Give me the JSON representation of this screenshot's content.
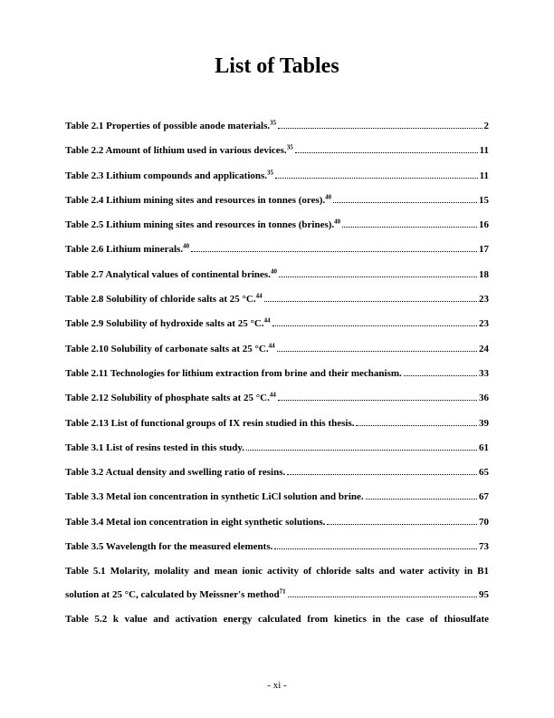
{
  "title": "List of Tables",
  "entries": [
    {
      "label": "Table 2.1 Properties of possible anode materials.",
      "sup": "35",
      "page": "2"
    },
    {
      "label": "Table 2.2 Amount of lithium used in various devices.",
      "sup": "35",
      "page": "11"
    },
    {
      "label": "Table 2.3 Lithium compounds and applications.",
      "sup": "35",
      "page": "11"
    },
    {
      "label": "Table 2.4 Lithium mining sites and resources in tonnes (ores).",
      "sup": "40",
      "page": "15"
    },
    {
      "label": "Table 2.5 Lithium mining sites and resources in tonnes (brines).",
      "sup": "40",
      "page": "16"
    },
    {
      "label": "Table 2.6 Lithium minerals.",
      "sup": "40",
      "page": "17"
    },
    {
      "label": "Table 2.7 Analytical values of continental brines.",
      "sup": "40",
      "page": "18"
    },
    {
      "label": "Table 2.8 Solubility of chloride salts at 25 °C.",
      "sup": "44",
      "page": "23"
    },
    {
      "label": "Table 2.9 Solubility of hydroxide salts at 25 °C.",
      "sup": "44",
      "page": "23"
    },
    {
      "label": "Table 2.10 Solubility of carbonate salts at 25 °C.",
      "sup": "44",
      "page": "24"
    },
    {
      "label": "Table 2.11 Technologies for lithium extraction from brine and their mechanism.",
      "sup": "",
      "page": "33"
    },
    {
      "label": "Table 2.12 Solubility of phosphate salts at 25 °C.",
      "sup": "44",
      "page": "36"
    },
    {
      "label": "Table 2.13 List of functional groups of IX resin studied in this thesis.",
      "sup": "",
      "page": "39"
    },
    {
      "label": "Table 3.1 List of resins tested in this study.",
      "sup": "",
      "page": "61"
    },
    {
      "label": "Table 3.2 Actual density and swelling ratio of resins.",
      "sup": "",
      "page": "65"
    },
    {
      "label": "Table 3.3 Metal ion concentration in synthetic LiCl solution and brine.",
      "sup": "",
      "page": "67"
    },
    {
      "label": "Table 3.4 Metal ion concentration in eight synthetic solutions.",
      "sup": "",
      "page": "70"
    },
    {
      "label": "Table 3.5 Wavelength for the measured elements.",
      "sup": "",
      "page": "73"
    }
  ],
  "multiline1": {
    "line1": "Table 5.1 Molarity, molality and mean ionic activity of chloride salts and water activity in B1",
    "line2_label": "solution at 25 °C, calculated by Meissner's method",
    "line2_sup": "71",
    "page": "95"
  },
  "multiline2": {
    "line1": "Table 5.2 k value and activation energy calculated from kinetics in the case of thiosulfate"
  },
  "footer": "-  xi  -"
}
